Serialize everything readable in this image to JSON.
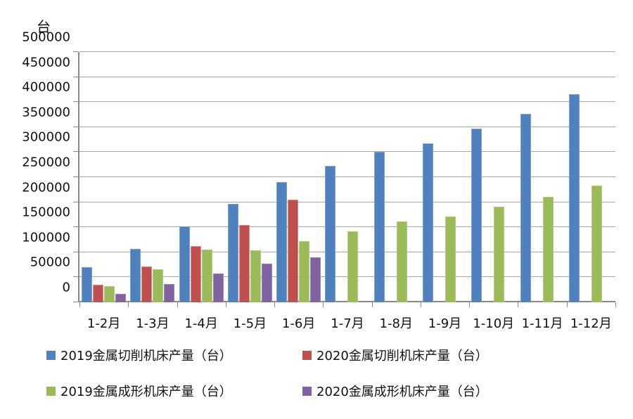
{
  "chart_data": {
    "type": "bar",
    "title": "",
    "ylabel": "台",
    "xlabel": "",
    "ylim": [
      0,
      500000
    ],
    "ytick_step": 50000,
    "grid": true,
    "legend_position": "bottom",
    "categories": [
      "1-2月",
      "1-3月",
      "1-4月",
      "1-5月",
      "1-6月",
      "1-7月",
      "1-8月",
      "1-9月",
      "1-10月",
      "1-11月",
      "1-12月"
    ],
    "series": [
      {
        "name": "2019金属切削机床产量（台）",
        "color": "#4f81bd",
        "border_color": "#7ba0cd",
        "values": [
          70000,
          107000,
          152000,
          196000,
          240000,
          272000,
          300000,
          317000,
          347000,
          376000,
          416000
        ]
      },
      {
        "name": "2020金属切削机床产量（台）",
        "color": "#c0504d",
        "border_color": "#d09392",
        "values": [
          35000,
          72000,
          113000,
          155000,
          205000,
          null,
          null,
          null,
          null,
          null,
          null
        ]
      },
      {
        "name": "2019金属成形机床产量（台）",
        "color": "#9bbb59",
        "border_color": "#b3cc82",
        "values": [
          33000,
          66000,
          106000,
          104000,
          122000,
          142000,
          162000,
          172000,
          191000,
          211000,
          233000
        ]
      },
      {
        "name": "2020金属成形机床产量（台）",
        "color": "#8064a2",
        "border_color": "#9a85b5",
        "values": [
          17000,
          36000,
          57000,
          77000,
          90000,
          null,
          null,
          null,
          null,
          null,
          null
        ]
      }
    ]
  }
}
